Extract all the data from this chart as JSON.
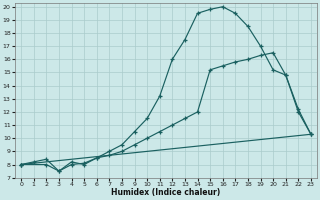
{
  "xlabel": "Humidex (Indice chaleur)",
  "bg_color": "#cce8e8",
  "line_color": "#1a6060",
  "grid_color": "#aacccc",
  "xlim": [
    -0.5,
    23.5
  ],
  "ylim": [
    7,
    20.3
  ],
  "xticks": [
    0,
    1,
    2,
    3,
    4,
    5,
    6,
    7,
    8,
    9,
    10,
    11,
    12,
    13,
    14,
    15,
    16,
    17,
    18,
    19,
    20,
    21,
    22,
    23
  ],
  "yticks": [
    7,
    8,
    9,
    10,
    11,
    12,
    13,
    14,
    15,
    16,
    17,
    18,
    19,
    20
  ],
  "curve1_x": [
    0,
    1,
    2,
    3,
    4,
    5,
    6,
    7,
    8,
    9,
    10,
    11,
    12,
    13,
    14,
    15,
    16,
    17,
    18,
    19,
    20,
    21,
    22,
    23
  ],
  "curve1_y": [
    8,
    8.2,
    8.4,
    7.5,
    8.0,
    8.1,
    8.5,
    9.0,
    9.5,
    10.5,
    11.5,
    13.2,
    16.0,
    17.5,
    19.5,
    19.8,
    20.0,
    19.5,
    18.5,
    17.0,
    15.2,
    14.8,
    12.0,
    10.3
  ],
  "curve2_x": [
    0,
    2,
    3,
    4,
    5,
    6,
    7,
    8,
    9,
    10,
    11,
    12,
    13,
    14,
    15,
    16,
    17,
    18,
    19,
    20,
    21,
    22,
    23
  ],
  "curve2_y": [
    8,
    8.0,
    7.5,
    8.2,
    8.0,
    8.5,
    8.7,
    9.0,
    9.5,
    10.0,
    10.5,
    11.0,
    11.5,
    12.0,
    15.2,
    15.5,
    15.8,
    16.0,
    16.3,
    16.5,
    14.8,
    12.2,
    10.3
  ],
  "curve3_x": [
    0,
    23
  ],
  "curve3_y": [
    8,
    10.3
  ]
}
